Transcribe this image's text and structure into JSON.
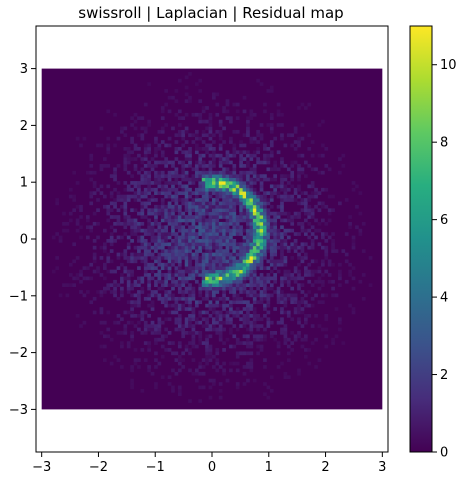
{
  "chart_data": {
    "type": "heatmap",
    "title": "swissroll | Laplacian | Residual map",
    "xlabel": "",
    "ylabel": "",
    "x_range": [
      -3,
      3
    ],
    "y_range": [
      -3,
      3
    ],
    "xlim": [
      -3.1,
      3.1
    ],
    "ylim": [
      -3.75,
      3.75
    ],
    "x_ticks": [
      -3,
      -2,
      -1,
      0,
      1,
      2,
      3
    ],
    "y_ticks": [
      -3,
      -2,
      -1,
      0,
      1,
      2,
      3
    ],
    "grid_bins": 100,
    "colormap": "viridis",
    "colorbar": {
      "min": 0,
      "max": 11,
      "ticks": [
        0,
        2,
        4,
        6,
        8,
        10
      ]
    },
    "background_value": 0,
    "spiral_arm": {
      "center": [
        0,
        0.15
      ],
      "radius": 0.85,
      "theta_start_deg": 100,
      "theta_end_deg": -100,
      "peak_value": 11
    },
    "diffuse_cloud": {
      "center": [
        0,
        0
      ],
      "radius": 1.4,
      "typical_value": 1.5
    }
  }
}
